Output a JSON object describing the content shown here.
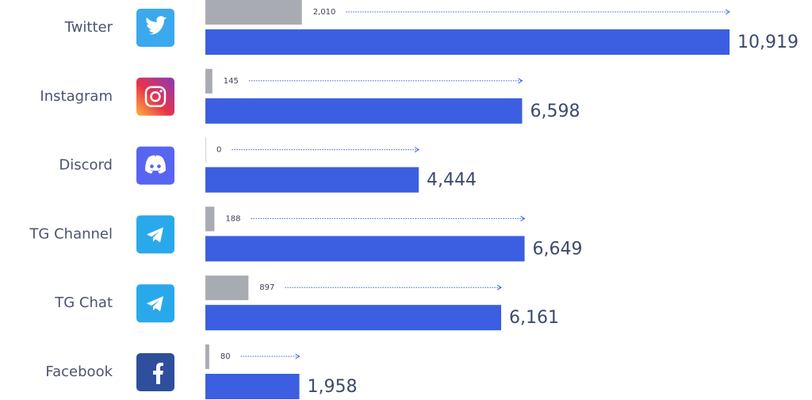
{
  "chart_data": {
    "type": "bar",
    "orientation": "horizontal",
    "categories": [
      "Twitter",
      "Instagram",
      "Discord",
      "TG Channel",
      "TG Chat",
      "Facebook"
    ],
    "xlim": [
      0,
      12000
    ],
    "series": [
      {
        "color": "#a9abb3",
        "values": [
          2010,
          145,
          0,
          188,
          897,
          80
        ],
        "value_labels": [
          "2,010",
          "145",
          "0",
          "188",
          "897",
          "80"
        ]
      },
      {
        "color": "#3b5fe0",
        "values": [
          10919,
          6598,
          4444,
          6649,
          6161,
          1958
        ],
        "value_labels": [
          "10,919",
          "6,598",
          "4,444",
          "6,649",
          "6,161",
          "1,958"
        ]
      }
    ]
  }
}
